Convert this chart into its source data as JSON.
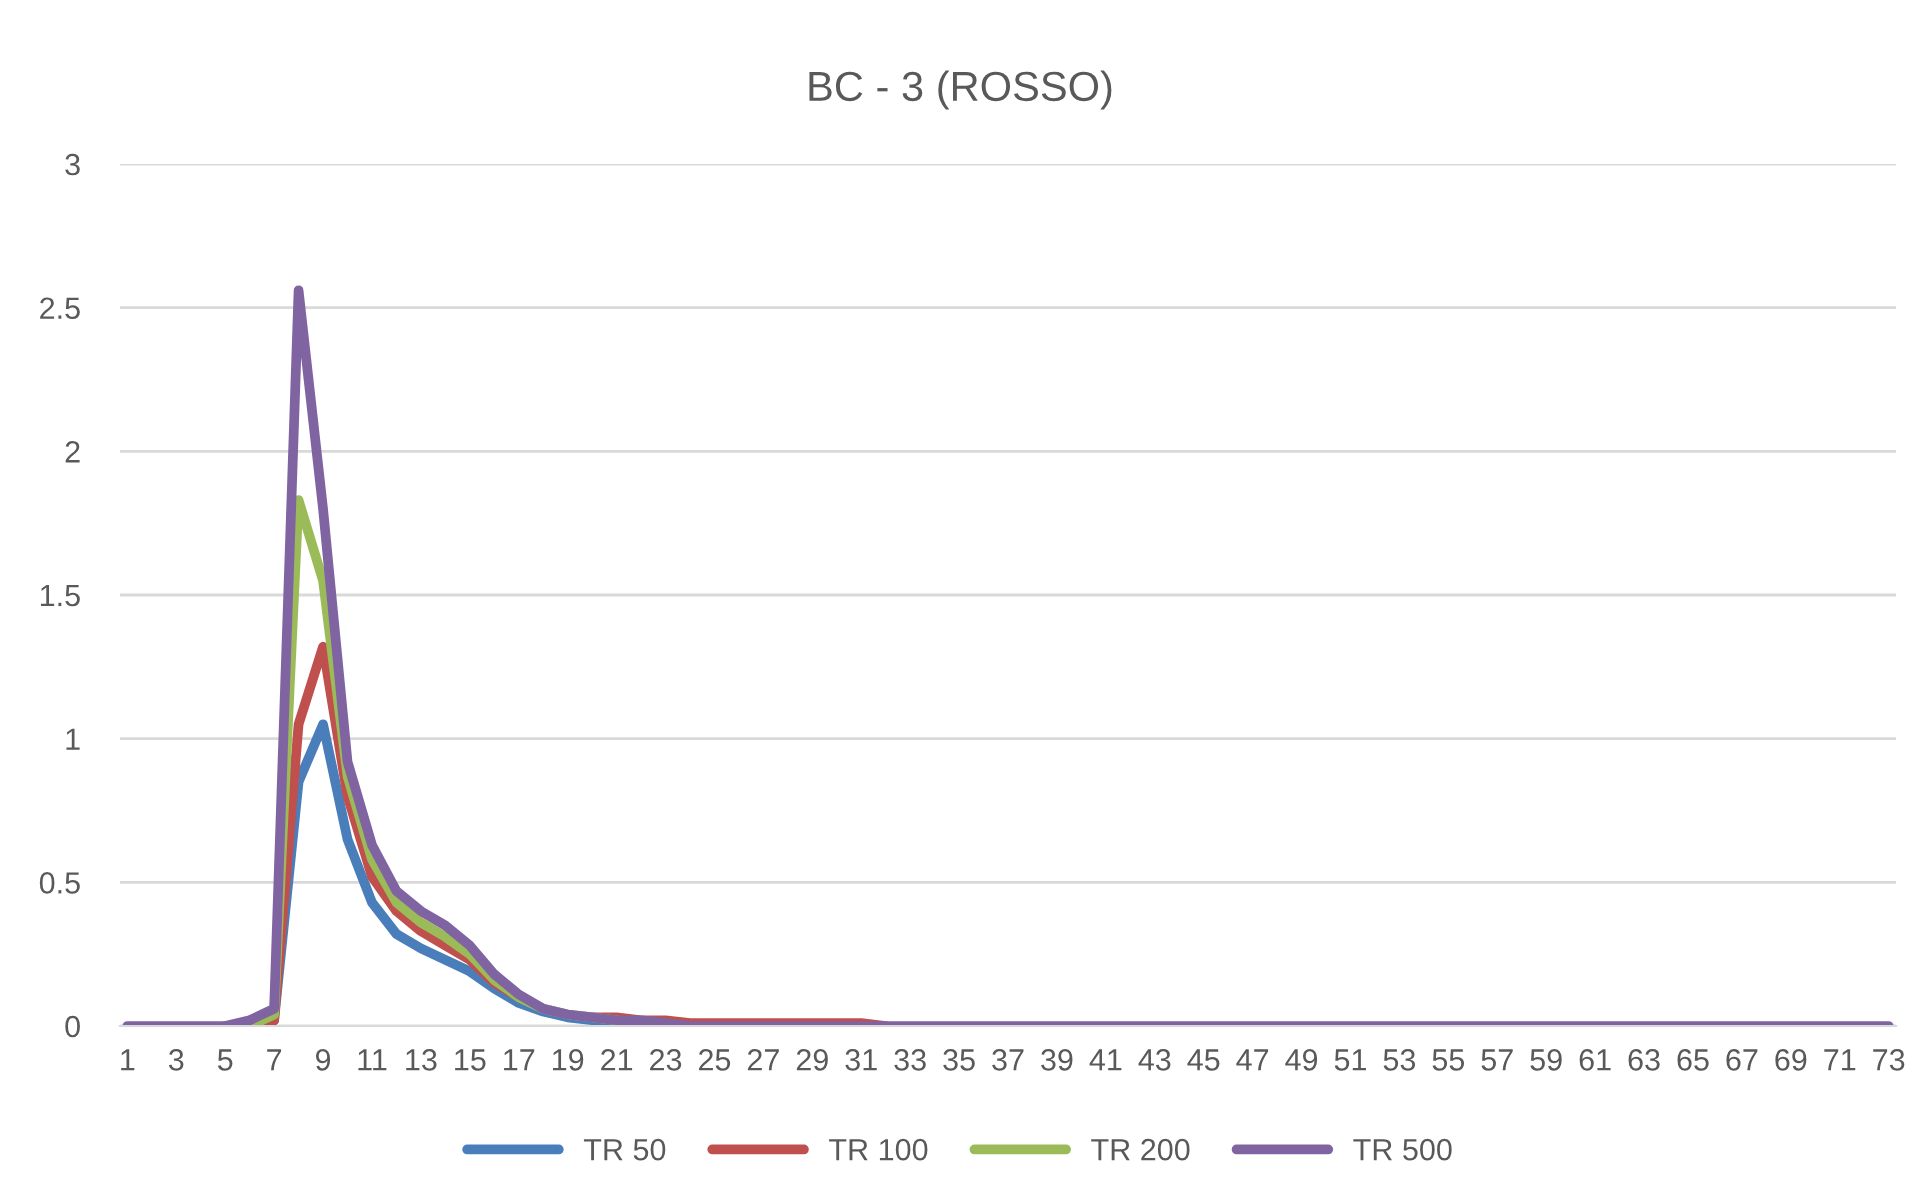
{
  "chart_data": {
    "type": "line",
    "title": "BC - 3 (ROSSO)",
    "categories": [
      "1",
      null,
      "3",
      null,
      "5",
      null,
      "7",
      null,
      "9",
      null,
      "11",
      null,
      "13",
      null,
      "15",
      null,
      "17",
      null,
      "19",
      null,
      "21",
      null,
      "23",
      null,
      "25",
      null,
      "27",
      null,
      "29",
      null,
      "31",
      null,
      "33",
      null,
      "35",
      null,
      "37",
      null,
      "39",
      null,
      "41",
      null,
      "43",
      null,
      "45",
      null,
      "47",
      null,
      "49",
      null,
      "51",
      null,
      "53",
      null,
      "55",
      null,
      "57",
      null,
      "59",
      null,
      "61",
      null,
      "63",
      null,
      "65",
      null,
      "67",
      null,
      "69",
      null,
      "71",
      null,
      "73"
    ],
    "series": [
      {
        "name": "TR 50",
        "color": "#4a7ebb",
        "values": [
          null,
          null,
          null,
          null,
          0,
          0,
          0.02,
          0.85,
          1.05,
          0.65,
          0.43,
          0.32,
          0.27,
          0.23,
          0.19,
          0.13,
          0.08,
          0.05,
          0.03,
          0.02,
          0.01,
          null,
          null,
          null,
          null,
          null,
          null,
          null,
          null,
          null,
          null,
          null,
          null,
          null,
          null,
          null,
          null,
          null,
          null,
          null,
          null,
          null,
          null,
          null,
          null,
          null,
          null,
          null,
          null,
          null,
          null,
          null,
          null,
          null,
          null,
          null,
          null,
          null,
          null,
          null,
          null,
          null,
          null,
          null,
          null,
          null,
          null,
          null,
          null,
          null,
          null,
          null,
          null
        ]
      },
      {
        "name": "TR 100",
        "color": "#c0504d",
        "values": [
          null,
          null,
          null,
          null,
          null,
          0,
          0.02,
          1.05,
          1.32,
          0.8,
          0.52,
          0.4,
          0.33,
          0.28,
          0.23,
          0.15,
          0.1,
          null,
          null,
          0.03,
          0.03,
          0.02,
          0.02,
          0.01,
          0.01,
          0.01,
          0.01,
          0.01,
          0.01,
          0.01,
          0.01,
          0,
          null,
          null,
          null,
          null,
          null,
          null,
          null,
          null,
          null,
          null,
          null,
          null,
          null,
          null,
          null,
          null,
          null,
          null,
          null,
          null,
          null,
          null,
          null,
          null,
          null,
          null,
          null,
          null,
          null,
          null,
          null,
          null,
          null,
          null,
          null,
          null,
          null,
          null,
          null,
          null,
          null
        ]
      },
      {
        "name": "TR 200",
        "color": "#9bbb59",
        "values": [
          null,
          null,
          null,
          null,
          0,
          0,
          0.04,
          1.83,
          1.55,
          0.87,
          0.58,
          0.43,
          0.36,
          0.31,
          0.25,
          0.16,
          0.1,
          0.06,
          0.04,
          0.03,
          0.02,
          null,
          null,
          null,
          null,
          null,
          null,
          null,
          null,
          null,
          null,
          null,
          null,
          null,
          null,
          null,
          null,
          null,
          null,
          null,
          null,
          null,
          null,
          null,
          null,
          null,
          null,
          null,
          null,
          null,
          null,
          null,
          null,
          null,
          null,
          null,
          null,
          null,
          null,
          null,
          null,
          null,
          null,
          null,
          null,
          null,
          null,
          null,
          null,
          null,
          null,
          null,
          null
        ]
      },
      {
        "name": "TR 500",
        "color": "#8064a2",
        "values": [
          0,
          0,
          0,
          0,
          0,
          0.02,
          0.06,
          2.56,
          1.8,
          0.92,
          0.63,
          0.47,
          0.4,
          0.35,
          0.28,
          0.18,
          0.11,
          0.06,
          0.04,
          0.03,
          0.02,
          0.02,
          0.01,
          0,
          0,
          0,
          0,
          0,
          0,
          0,
          0,
          0,
          0,
          0,
          0,
          0,
          0,
          0,
          0,
          0,
          0,
          0,
          0,
          0,
          0,
          0,
          0,
          0,
          0,
          0,
          0,
          0,
          0,
          0,
          0,
          0,
          0,
          0,
          0,
          0,
          0,
          0,
          0,
          0,
          0,
          0,
          0,
          0,
          0,
          0,
          0,
          0,
          0
        ]
      }
    ],
    "ylim": [
      0,
      3
    ],
    "yticks": [
      0,
      0.5,
      1,
      1.5,
      2,
      2.5,
      3
    ],
    "grid": "y",
    "legend": "bottom"
  }
}
